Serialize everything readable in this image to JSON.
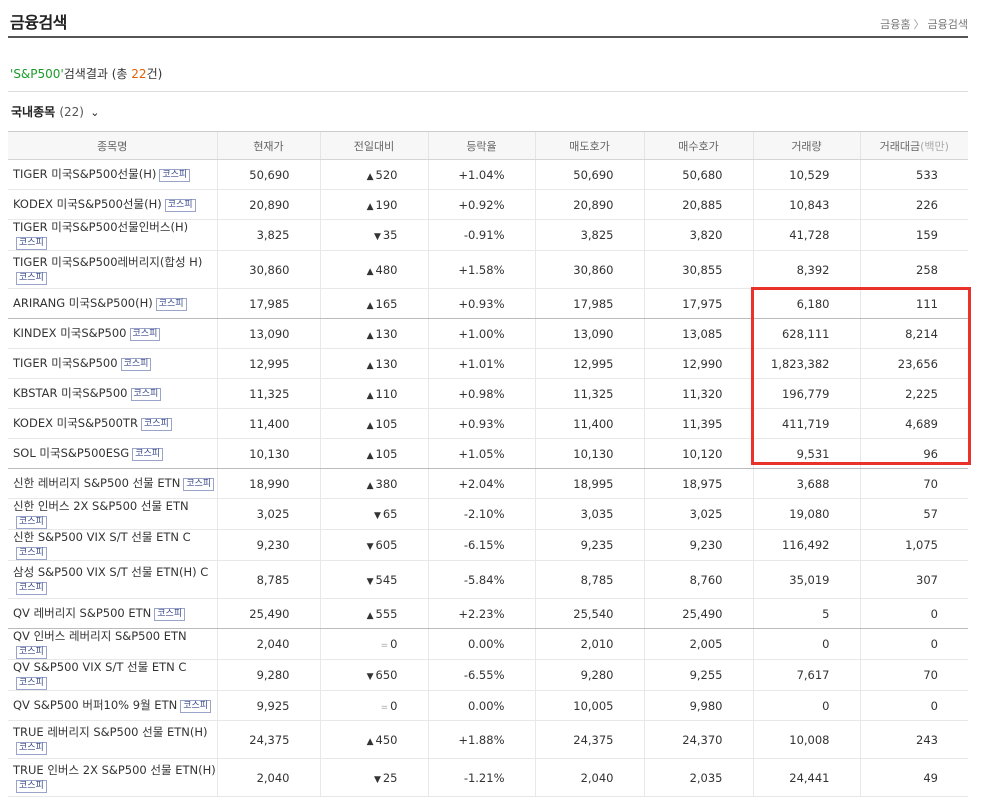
{
  "header": {
    "title": "금융검색",
    "breadcrumb": [
      "금융홈",
      "금융검색"
    ]
  },
  "result": {
    "quote_open": "'",
    "keyword": "S&P500",
    "quote_close": "'",
    "suffix": "검색결과 (총",
    "count": "22",
    "count_suffix": "건)"
  },
  "section": {
    "title": "국내종목",
    "count": "(22)"
  },
  "table": {
    "headers": [
      "종목명",
      "현재가",
      "전일대비",
      "등락율",
      "매도호가",
      "매수호가",
      "거래량",
      "거래대금"
    ],
    "header_unit": "(백만)",
    "market_badge": "코스피",
    "rows": [
      {
        "name": "TIGER 미국S&P500선물(H)",
        "market": "코스피",
        "price": "50,690",
        "dir": "up",
        "change": "520",
        "rate": "+1.04%",
        "ask": "50,690",
        "bid": "50,680",
        "volume": "10,529",
        "amount": "533"
      },
      {
        "name": "KODEX 미국S&P500선물(H)",
        "market": "코스피",
        "price": "20,890",
        "dir": "up",
        "change": "190",
        "rate": "+0.92%",
        "ask": "20,890",
        "bid": "20,885",
        "volume": "10,843",
        "amount": "226"
      },
      {
        "name": "TIGER 미국S&P500선물인버스(H)",
        "market": "코스피",
        "price": "3,825",
        "dir": "down",
        "change": "35",
        "rate": "-0.91%",
        "ask": "3,825",
        "bid": "3,820",
        "volume": "41,728",
        "amount": "159"
      },
      {
        "name": "TIGER 미국S&P500레버리지(합성 H)",
        "market": "코스피",
        "price": "30,860",
        "dir": "up",
        "change": "480",
        "rate": "+1.58%",
        "ask": "30,860",
        "bid": "30,855",
        "volume": "8,392",
        "amount": "258"
      },
      {
        "name": "ARIRANG 미국S&P500(H)",
        "market": "코스피",
        "price": "17,985",
        "dir": "up",
        "change": "165",
        "rate": "+0.93%",
        "ask": "17,985",
        "bid": "17,975",
        "volume": "6,180",
        "amount": "111"
      },
      {
        "name": "KINDEX 미국S&P500",
        "market": "코스피",
        "price": "13,090",
        "dir": "up",
        "change": "130",
        "rate": "+1.00%",
        "ask": "13,090",
        "bid": "13,085",
        "volume": "628,111",
        "amount": "8,214"
      },
      {
        "name": "TIGER 미국S&P500",
        "market": "코스피",
        "price": "12,995",
        "dir": "up",
        "change": "130",
        "rate": "+1.01%",
        "ask": "12,995",
        "bid": "12,990",
        "volume": "1,823,382",
        "amount": "23,656"
      },
      {
        "name": "KBSTAR 미국S&P500",
        "market": "코스피",
        "price": "11,325",
        "dir": "up",
        "change": "110",
        "rate": "+0.98%",
        "ask": "11,325",
        "bid": "11,320",
        "volume": "196,779",
        "amount": "2,225"
      },
      {
        "name": "KODEX 미국S&P500TR",
        "market": "코스피",
        "price": "11,400",
        "dir": "up",
        "change": "105",
        "rate": "+0.93%",
        "ask": "11,400",
        "bid": "11,395",
        "volume": "411,719",
        "amount": "4,689"
      },
      {
        "name": "SOL 미국S&P500ESG",
        "market": "코스피",
        "price": "10,130",
        "dir": "up",
        "change": "105",
        "rate": "+1.05%",
        "ask": "10,130",
        "bid": "10,120",
        "volume": "9,531",
        "amount": "96"
      },
      {
        "name": "신한 레버리지 S&P500 선물 ETN",
        "market": "코스피",
        "price": "18,990",
        "dir": "up",
        "change": "380",
        "rate": "+2.04%",
        "ask": "18,995",
        "bid": "18,975",
        "volume": "3,688",
        "amount": "70"
      },
      {
        "name": "신한 인버스 2X S&P500 선물 ETN",
        "market": "코스피",
        "price": "3,025",
        "dir": "down",
        "change": "65",
        "rate": "-2.10%",
        "ask": "3,035",
        "bid": "3,025",
        "volume": "19,080",
        "amount": "57"
      },
      {
        "name": "신한 S&P500 VIX S/T 선물 ETN C",
        "market": "코스피",
        "price": "9,230",
        "dir": "down",
        "change": "605",
        "rate": "-6.15%",
        "ask": "9,235",
        "bid": "9,230",
        "volume": "116,492",
        "amount": "1,075"
      },
      {
        "name": "삼성 S&P500 VIX S/T 선물 ETN(H) C",
        "market": "코스피",
        "price": "8,785",
        "dir": "down",
        "change": "545",
        "rate": "-5.84%",
        "ask": "8,785",
        "bid": "8,760",
        "volume": "35,019",
        "amount": "307"
      },
      {
        "name": "QV 레버리지 S&P500 ETN",
        "market": "코스피",
        "price": "25,490",
        "dir": "up",
        "change": "555",
        "rate": "+2.23%",
        "ask": "25,540",
        "bid": "25,490",
        "volume": "5",
        "amount": "0"
      },
      {
        "name": "QV 인버스 레버리지 S&P500 ETN",
        "market": "코스피",
        "price": "2,040",
        "dir": "flat",
        "change": "0",
        "rate": "0.00%",
        "ask": "2,010",
        "bid": "2,005",
        "volume": "0",
        "amount": "0"
      },
      {
        "name": "QV S&P500 VIX S/T 선물 ETN C",
        "market": "코스피",
        "price": "9,280",
        "dir": "down",
        "change": "650",
        "rate": "-6.55%",
        "ask": "9,280",
        "bid": "9,255",
        "volume": "7,617",
        "amount": "70"
      },
      {
        "name": "QV S&P500 버퍼10% 9월 ETN",
        "market": "코스피",
        "price": "9,925",
        "dir": "flat",
        "change": "0",
        "rate": "0.00%",
        "ask": "10,005",
        "bid": "9,980",
        "volume": "0",
        "amount": "0"
      },
      {
        "name": "TRUE 레버리지 S&P500 선물 ETN(H)",
        "market": "코스피",
        "price": "24,375",
        "dir": "up",
        "change": "450",
        "rate": "+1.88%",
        "ask": "24,375",
        "bid": "24,370",
        "volume": "10,008",
        "amount": "243"
      },
      {
        "name": "TRUE 인버스 2X S&P500 선물 ETN(H)",
        "market": "코스피",
        "price": "2,040",
        "dir": "down",
        "change": "25",
        "rate": "-1.21%",
        "ask": "2,040",
        "bid": "2,035",
        "volume": "24,441",
        "amount": "49"
      }
    ]
  },
  "colors": {
    "up": "#e00000",
    "down": "#1a4fb0",
    "highlight": "#e8322a",
    "keyword": "#1a9a2a",
    "count": "#e06000"
  }
}
